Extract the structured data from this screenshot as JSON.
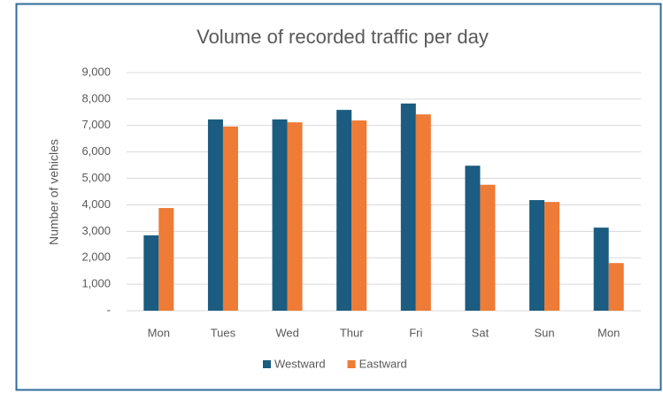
{
  "chart_data": {
    "type": "bar",
    "title": "Volume of recorded traffic per day",
    "y_label": "Number of vehicles",
    "categories": [
      "Mon",
      "Tues",
      "Wed",
      "Thur",
      "Fri",
      "Sat",
      "Sun",
      "Mon"
    ],
    "series": [
      {
        "name": "Westward",
        "color": "#1b5c80",
        "values": [
          2850,
          7230,
          7230,
          7590,
          7830,
          5480,
          4180,
          3140
        ]
      },
      {
        "name": "Eastward",
        "color": "#ee7b36",
        "values": [
          3880,
          6960,
          7120,
          7190,
          7420,
          4760,
          4110,
          1800
        ]
      }
    ],
    "ylim": [
      0,
      9000
    ],
    "yticks": [
      {
        "value": 0,
        "label": "-"
      },
      {
        "value": 1000,
        "label": "1,000"
      },
      {
        "value": 2000,
        "label": "2,000"
      },
      {
        "value": 3000,
        "label": "3,000"
      },
      {
        "value": 4000,
        "label": "4,000"
      },
      {
        "value": 5000,
        "label": "5,000"
      },
      {
        "value": 6000,
        "label": "6,000"
      },
      {
        "value": 7000,
        "label": "7,000"
      },
      {
        "value": 8000,
        "label": "8,000"
      },
      {
        "value": 9000,
        "label": "9,000"
      }
    ],
    "grid": true,
    "legend": "bottom"
  }
}
